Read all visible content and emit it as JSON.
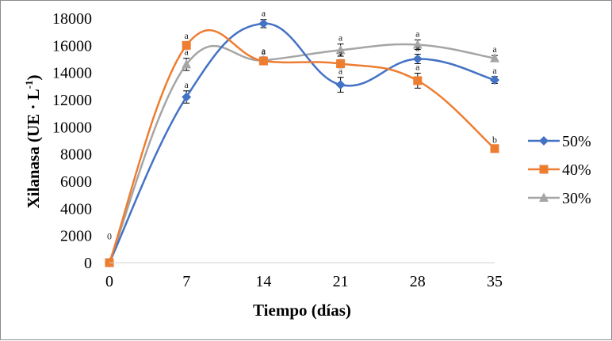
{
  "chart_data": {
    "type": "line",
    "smooth": true,
    "xlabel": "Tiempo (días)",
    "ylabel_main": "Xilanasa (UE · L",
    "ylabel_sup": "-1",
    "ylabel_close": ")",
    "x": [
      0,
      7,
      14,
      21,
      28,
      35
    ],
    "x_tick_labels": [
      "0",
      "7",
      "14",
      "21",
      "28",
      "35"
    ],
    "xlim": [
      0,
      35
    ],
    "ylim": [
      0,
      18000
    ],
    "y_ticks": [
      0,
      2000,
      4000,
      6000,
      8000,
      10000,
      12000,
      14000,
      16000,
      18000
    ],
    "y_tick_labels": [
      "0",
      "2000",
      "4000",
      "6000",
      "8000",
      "10000",
      "12000",
      "14000",
      "16000",
      "18000"
    ],
    "zero_annotation": "0",
    "legend_position": "right",
    "series": [
      {
        "name": "50%",
        "color": "#4472C4",
        "marker": "diamond",
        "values": [
          0,
          12200,
          17600,
          13100,
          15000,
          13450
        ],
        "errors": [
          0,
          450,
          300,
          550,
          350,
          250
        ],
        "letters": [
          "",
          "a",
          "a",
          "a",
          "a",
          "a"
        ]
      },
      {
        "name": "40%",
        "color": "#ED7D31",
        "marker": "square",
        "values": [
          0,
          16000,
          14850,
          14650,
          13400,
          8400
        ],
        "errors": [
          0,
          250,
          250,
          300,
          550,
          200
        ],
        "letters": [
          "",
          "a",
          "a",
          "a",
          "a",
          "b"
        ]
      },
      {
        "name": "30%",
        "color": "#A5A5A5",
        "marker": "triangle",
        "values": [
          0,
          14600,
          14900,
          15650,
          16050,
          15050
        ],
        "errors": [
          0,
          450,
          250,
          450,
          350,
          200
        ],
        "letters": [
          "",
          "a",
          "a",
          "a",
          "a",
          "a"
        ]
      }
    ]
  }
}
